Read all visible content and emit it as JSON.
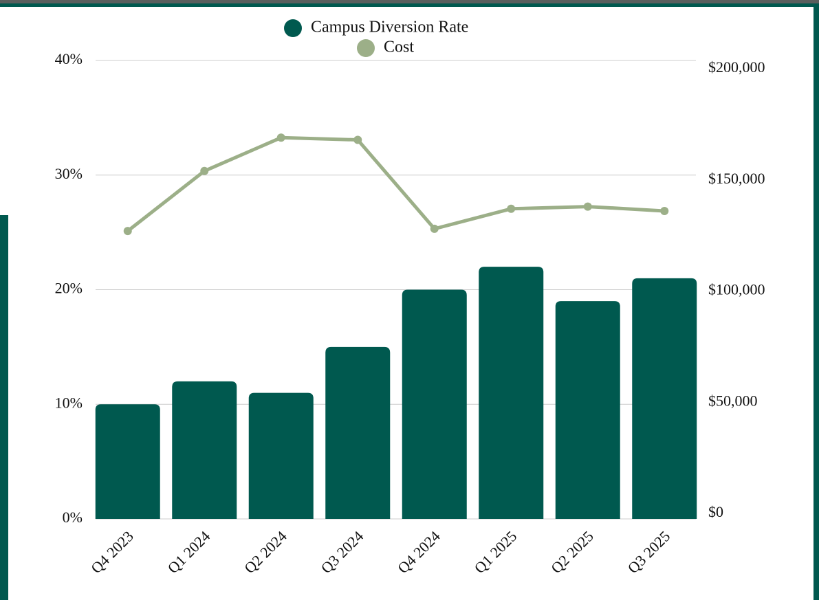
{
  "chart_data": {
    "type": "bar",
    "categories": [
      "Q4 2023",
      "Q1 2024",
      "Q2 2024",
      "Q3 2024",
      "Q4 2024",
      "Q1 2025",
      "Q2 2025",
      "Q3 2025"
    ],
    "series": [
      {
        "name": "Campus Diversion Rate",
        "type": "bar",
        "axis": "y",
        "color": "#00594f",
        "values": [
          10,
          12,
          11,
          15,
          20,
          22,
          19,
          21
        ]
      },
      {
        "name": "Cost",
        "type": "line",
        "axis": "y2",
        "color": "#9caf88",
        "values": [
          127000,
          154000,
          169000,
          168000,
          128000,
          137000,
          138000,
          136000
        ]
      }
    ],
    "ylim": [
      0,
      40
    ],
    "yticks": [
      {
        "value": 0,
        "label": "0%"
      },
      {
        "value": 10,
        "label": "10%"
      },
      {
        "value": 20,
        "label": "20%"
      },
      {
        "value": 30,
        "label": "30%"
      },
      {
        "value": 40,
        "label": "40%"
      }
    ],
    "y2lim": [
      0,
      200000
    ],
    "y2ticks": [
      {
        "value": 0,
        "label": "$0"
      },
      {
        "value": 50000,
        "label": "$50,000"
      },
      {
        "value": 100000,
        "label": "$100,000"
      },
      {
        "value": 150000,
        "label": "$150,000"
      },
      {
        "value": 200000,
        "label": "$200,000"
      }
    ],
    "grid": true,
    "legend": "top"
  }
}
